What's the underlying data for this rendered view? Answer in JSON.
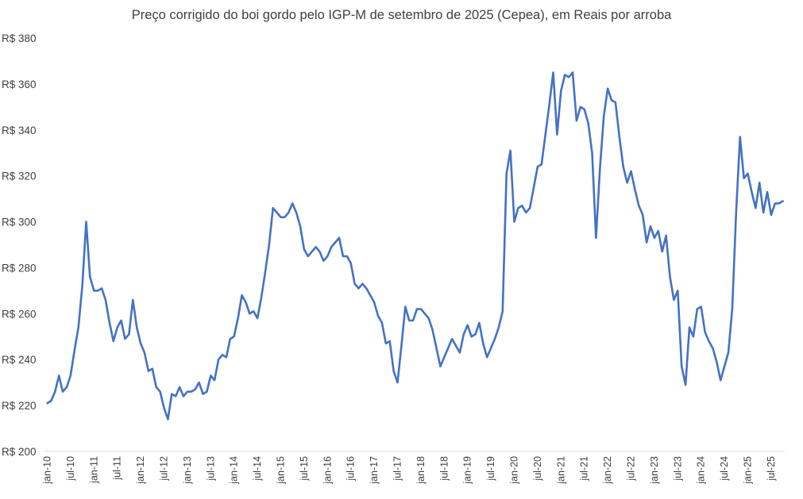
{
  "chart_data": {
    "type": "line",
    "title": "Preço corrigido do boi gordo pelo IGP-M de setembro de 2025 (Cepea), em Reais por arroba",
    "xlabel": "",
    "ylabel": "",
    "ylim": [
      200,
      380
    ],
    "y_ticks": [
      200,
      220,
      240,
      260,
      280,
      300,
      320,
      340,
      360,
      380
    ],
    "y_tick_labels": [
      "R$ 200",
      "R$ 220",
      "R$ 240",
      "R$ 260",
      "R$ 280",
      "R$ 300",
      "R$ 320",
      "R$ 340",
      "R$ 360",
      "R$ 380"
    ],
    "x_ticks": [
      "jan-10",
      "jul-10",
      "jan-11",
      "jul-11",
      "jan-12",
      "jul-12",
      "jan-13",
      "jul-13",
      "jan-14",
      "jul-14",
      "jan-15",
      "jul-15",
      "jan-16",
      "jul-16",
      "jan-17",
      "jul-17",
      "jan-18",
      "jul-18",
      "jan-19",
      "jul-19",
      "jan-20",
      "jul-20",
      "jan-21",
      "jul-21",
      "jan-22",
      "jul-22",
      "jan-23",
      "jul-23",
      "jan-24",
      "jul-24",
      "jan-25",
      "jul-25"
    ],
    "grid": false,
    "legend": "none",
    "line_color": "#4472C4",
    "series": [
      {
        "start": "jan-10",
        "frequency": "monthly",
        "values": [
          221,
          222,
          226,
          233,
          226,
          228,
          233,
          244,
          254,
          272,
          300,
          276,
          270,
          270,
          271,
          266,
          256,
          248,
          254,
          257,
          249,
          251,
          266,
          254,
          247,
          243,
          235,
          236,
          228,
          226,
          219,
          214,
          225,
          224,
          228,
          224,
          226,
          226,
          227,
          230,
          225,
          226,
          233,
          231,
          240,
          242,
          241,
          249,
          250,
          258,
          268,
          265,
          260,
          261,
          258,
          267,
          278,
          290,
          306,
          304,
          302,
          302,
          304,
          308,
          304,
          298,
          288,
          285,
          287,
          289,
          287,
          283,
          285,
          289,
          291,
          293,
          285,
          285,
          282,
          273,
          271,
          273,
          271,
          268,
          265,
          259,
          256,
          247,
          248,
          235,
          230,
          246,
          263,
          257,
          257,
          262,
          262,
          260,
          258,
          253,
          245,
          237,
          241,
          245,
          249,
          246,
          243,
          251,
          255,
          250,
          251,
          256,
          247,
          241,
          245,
          249,
          254,
          261,
          321,
          331,
          300,
          306,
          307,
          304,
          306,
          315,
          324,
          325,
          338,
          351,
          365,
          338,
          357,
          364,
          363,
          365,
          344,
          350,
          349,
          343,
          330,
          293,
          323,
          346,
          358,
          353,
          352,
          337,
          324,
          317,
          322,
          314,
          307,
          303,
          291,
          298,
          293,
          296,
          287,
          294,
          276,
          266,
          270,
          237,
          229,
          254,
          250,
          262,
          263,
          252,
          248,
          245,
          239,
          231,
          237,
          243,
          262,
          304,
          337,
          319,
          321,
          313,
          306,
          317,
          304,
          313,
          303,
          308,
          308,
          309
        ]
      }
    ]
  }
}
